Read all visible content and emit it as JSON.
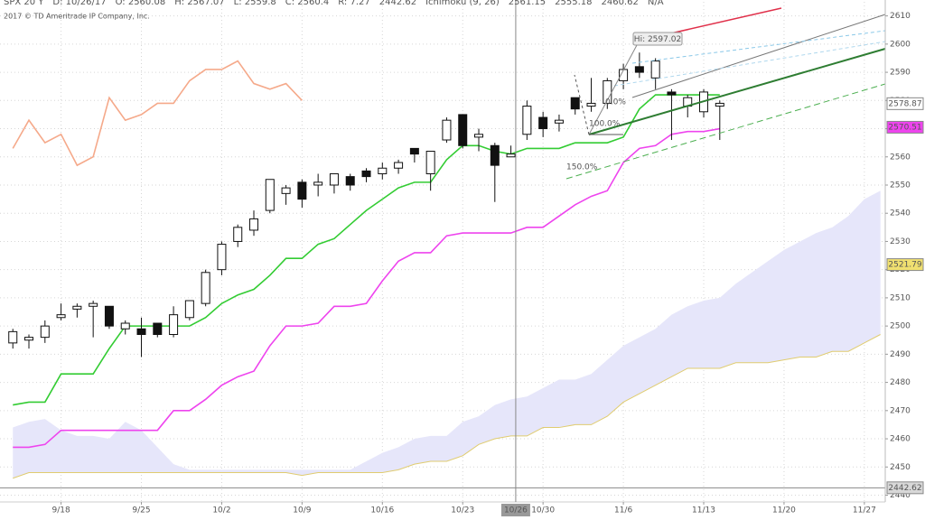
{
  "chart_data": {
    "type": "candlestick",
    "header": [
      {
        "text": "SPX 20 Y",
        "color": "#333333"
      },
      {
        "text": "D: 10/26/17",
        "color": "#333333"
      },
      {
        "text": "O: 2560.08",
        "color": "#333333"
      },
      {
        "text": "H: 2567.07",
        "color": "#333333"
      },
      {
        "text": "L: 2559.8",
        "color": "#333333"
      },
      {
        "text": "C: 2560.4",
        "color": "#333333"
      },
      {
        "text": "R: 7.27",
        "color": "#333333"
      },
      {
        "text": "2442.62",
        "color": "#333333"
      },
      {
        "text": "Ichimoku (9, 26)",
        "color": "#2e9e2e"
      },
      {
        "text": "2561.15",
        "color": "#2fbf2f"
      },
      {
        "text": "2555.18",
        "color": "#e040e0"
      },
      {
        "text": "2460.62",
        "color": "#d4b840"
      },
      {
        "text": "N/A",
        "color": "#e06060"
      }
    ],
    "subtitle": "2017 © TD Ameritrade IP Company, Inc.",
    "xlim": [
      -0.8,
      54.3
    ],
    "ylim": [
      2437.6,
      2615
    ],
    "yticks": [
      2440,
      2450,
      2460,
      2470,
      2480,
      2490,
      2500,
      2510,
      2520,
      2530,
      2540,
      2550,
      2560,
      2570,
      2580,
      2590,
      2600,
      2610
    ],
    "xticks": [
      {
        "value": 3,
        "label": "9/18"
      },
      {
        "value": 8,
        "label": "9/25"
      },
      {
        "value": 13,
        "label": "10/2"
      },
      {
        "value": 18,
        "label": "10/9"
      },
      {
        "value": 23,
        "label": "10/16"
      },
      {
        "value": 28,
        "label": "10/23"
      },
      {
        "value": 33,
        "label": "10/30"
      },
      {
        "value": 38,
        "label": "11/6"
      },
      {
        "value": 43,
        "label": "11/13"
      },
      {
        "value": 48,
        "label": "11/20"
      },
      {
        "value": 53,
        "label": "11/27"
      }
    ],
    "grid": true,
    "candles": {
      "open": [
        2494,
        2495,
        2496,
        2503,
        2506,
        2507,
        2507,
        2499,
        2499,
        2501,
        2497,
        2503,
        2508,
        2520,
        2530,
        2534,
        2541,
        2547,
        2551,
        2550,
        2550,
        2553,
        2555,
        2554,
        2556,
        2563,
        2554,
        2566,
        2575,
        2567,
        2564,
        2560,
        2568,
        2574,
        2572,
        2581,
        2578,
        2579,
        2587,
        2592,
        2588,
        2583,
        2578,
        2576,
        2578
      ],
      "high": [
        2499,
        2497,
        2502,
        2508,
        2508,
        2509,
        2507,
        2502,
        2503,
        2501,
        2507,
        2509,
        2520,
        2530,
        2536,
        2541,
        2552,
        2550,
        2552,
        2554,
        2554,
        2554,
        2556,
        2558,
        2559,
        2563,
        2562,
        2574,
        2575,
        2570,
        2565,
        2564,
        2580,
        2576,
        2575,
        2581,
        2588,
        2588,
        2593,
        2597,
        2595,
        2584,
        2582,
        2584,
        2580
      ],
      "low": [
        2492,
        2492,
        2494,
        2502,
        2503,
        2496,
        2499,
        2497,
        2489,
        2496,
        2496,
        2502,
        2507,
        2518,
        2528,
        2532,
        2540,
        2543,
        2542,
        2546,
        2547,
        2548,
        2551,
        2552,
        2554,
        2558,
        2548,
        2565,
        2563,
        2562,
        2544,
        2560,
        2566,
        2567,
        2569,
        2575,
        2576,
        2577,
        2584,
        2588,
        2584,
        2566,
        2574,
        2574,
        2566
      ],
      "close": [
        2498,
        2496,
        2500,
        2504,
        2507,
        2508,
        2500,
        2501,
        2497,
        2497,
        2504,
        2509,
        2519,
        2529,
        2535,
        2538,
        2552,
        2549,
        2545,
        2551,
        2554,
        2550,
        2553,
        2556,
        2558,
        2561,
        2562,
        2573,
        2564,
        2568,
        2557,
        2561,
        2578,
        2570,
        2573,
        2577,
        2579,
        2587,
        2591,
        2590,
        2594,
        2582,
        2581,
        2583,
        2579
      ]
    },
    "series": [
      {
        "kind": "area",
        "color": "#e6e6fa",
        "values": [
          2464,
          2466,
          2467,
          2463,
          2461,
          2461,
          2460,
          2466,
          2463,
          2457,
          2451,
          2449,
          2449,
          2449,
          2449,
          2449,
          2449,
          2449,
          2449,
          2449,
          2449,
          2449,
          2452,
          2455,
          2457,
          2460,
          2461,
          2461,
          2466,
          2468,
          2472,
          2474,
          2475,
          2478,
          2481,
          2481,
          2483,
          2488,
          2493,
          2496,
          2499,
          2504,
          2507,
          2509,
          2510,
          2515,
          2519,
          2523,
          2527,
          2530,
          2533,
          2535,
          2539,
          2545,
          2548
        ]
      },
      {
        "kind": "line",
        "color": "#e0cc70",
        "values": [
          2446,
          2448,
          2448,
          2448,
          2448,
          2448,
          2448,
          2448,
          2448,
          2448,
          2448,
          2448,
          2448,
          2448,
          2448,
          2448,
          2448,
          2448,
          2447,
          2448,
          2448,
          2448,
          2448,
          2448,
          2449,
          2451,
          2452,
          2452,
          2454,
          2458,
          2460,
          2461,
          2461,
          2464,
          2464,
          2465,
          2465,
          2468,
          2473,
          2476,
          2479,
          2482,
          2485,
          2485,
          2485,
          2487,
          2487,
          2487,
          2488,
          2489,
          2489,
          2491,
          2491,
          2494,
          2497
        ]
      },
      {
        "kind": "line",
        "color": "#f5a98a",
        "values": [
          2563,
          2573,
          2565,
          2568,
          2557,
          2560,
          2581,
          2573,
          2575,
          2579,
          2579,
          2587,
          2591,
          2591,
          2594,
          2586,
          2584,
          2586,
          2580
        ]
      },
      {
        "kind": "line",
        "color": "#ee44ee",
        "values": [
          2457,
          2457,
          2458,
          2463,
          2463,
          2463,
          2463,
          2463,
          2463,
          2463,
          2470,
          2470,
          2474,
          2479,
          2482,
          2484,
          2493,
          2500,
          2500,
          2501,
          2507,
          2507,
          2508,
          2516,
          2523,
          2526,
          2526,
          2532,
          2533,
          2533,
          2533,
          2533,
          2535,
          2535,
          2539,
          2543,
          2546,
          2548,
          2558,
          2563,
          2564,
          2568,
          2569,
          2569,
          2570
        ]
      },
      {
        "kind": "line",
        "color": "#33cc33",
        "values": [
          2472,
          2473,
          2473,
          2483,
          2483,
          2483,
          2492,
          2500,
          2500,
          2500,
          2500,
          2500,
          2503,
          2508,
          2511,
          2513,
          2518,
          2524,
          2524,
          2529,
          2531,
          2536,
          2541,
          2545,
          2549,
          2551,
          2551,
          2559,
          2564,
          2564,
          2562,
          2561,
          2563,
          2563,
          2563,
          2565,
          2565,
          2565,
          2567,
          2577,
          2582,
          2582,
          2582,
          2582,
          2582
        ]
      }
    ],
    "price_labels": [
      {
        "value": 2578.87,
        "color": "#ffffff"
      },
      {
        "value": 2570.51,
        "color": "#ee44ee"
      },
      {
        "value": 2521.79,
        "color": "#f0e070"
      },
      {
        "value": 2442.62,
        "color": "#d8d8d8"
      }
    ],
    "crosshair": {
      "x": 31.3,
      "label": "10/26"
    },
    "annotations": {
      "high": "Hi: 2597.02",
      "fib100": "100.0%",
      "fib150": "150.0%",
      "fib0": "0.0%"
    }
  }
}
